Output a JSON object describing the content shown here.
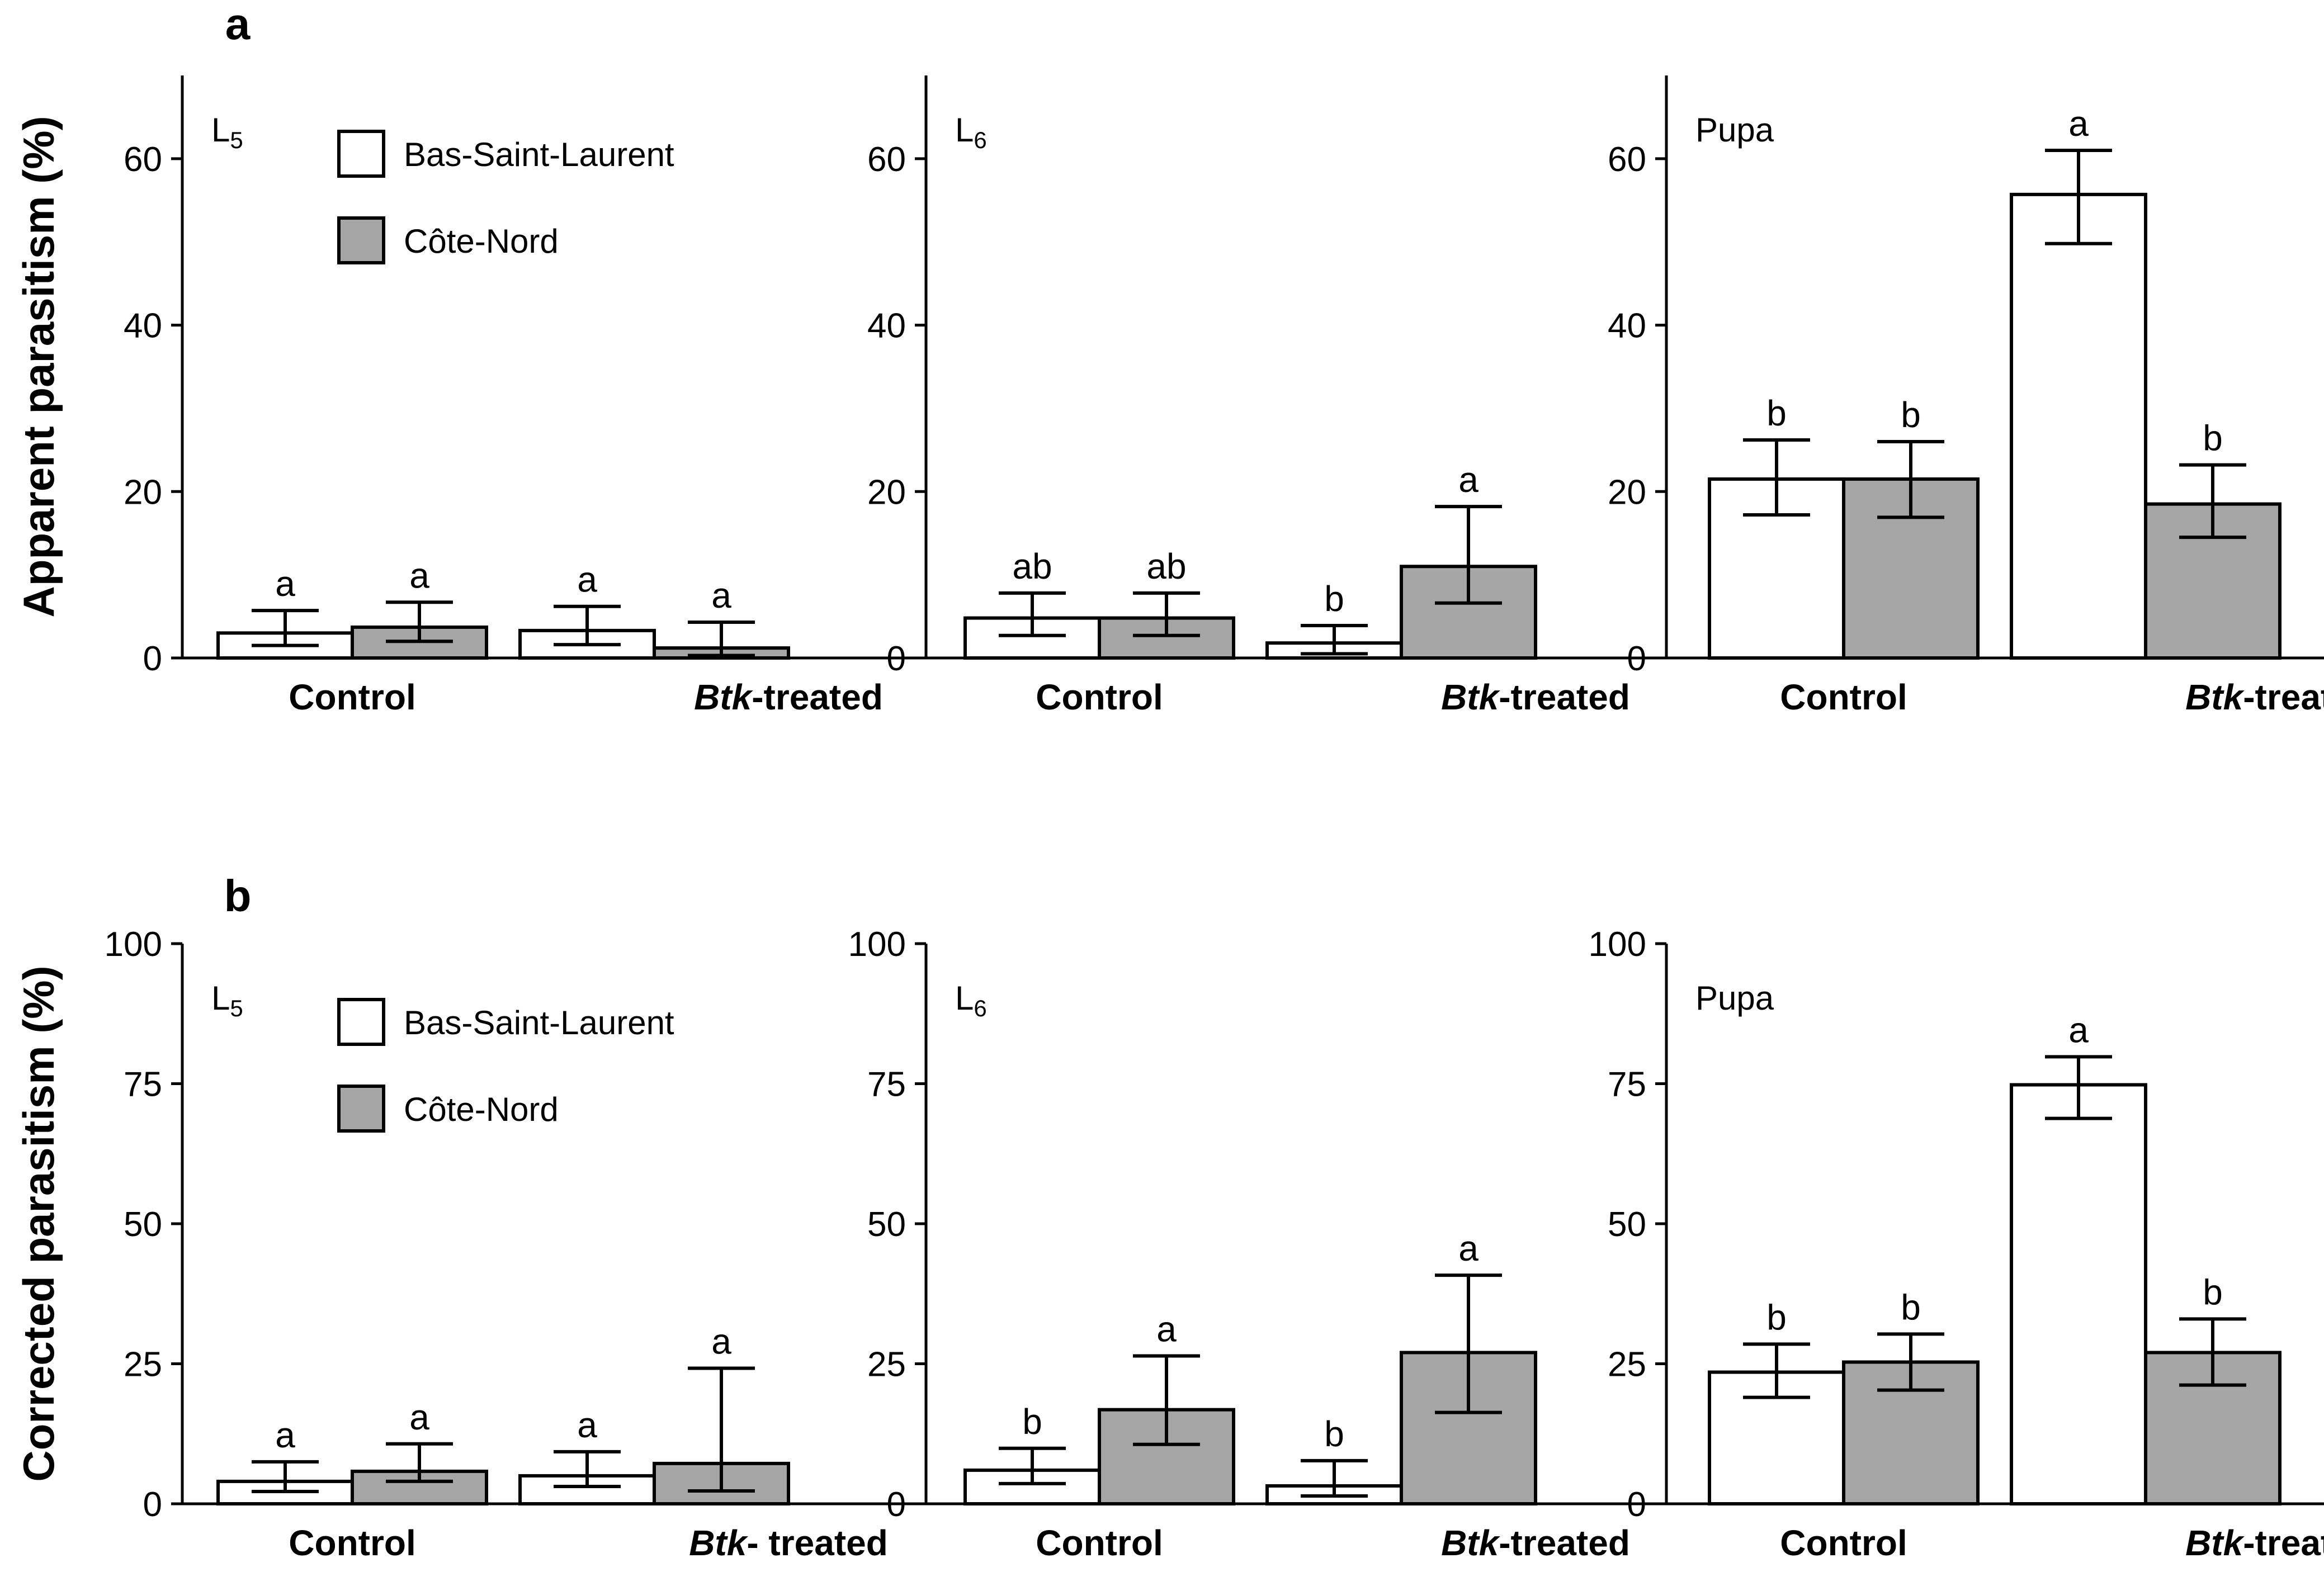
{
  "colors": {
    "bas_saint_laurent": "#ffffff",
    "cote_nord": "#a6a6a6",
    "axis": "#000000"
  },
  "legend": {
    "bas_saint_laurent": "Bas-Saint-Laurent",
    "cote_nord": "Côte-Nord"
  },
  "rows": [
    {
      "letter": "a",
      "ylabel": "Apparent parasitism (%)",
      "ylim": [
        0,
        70
      ],
      "ticks": [
        0,
        20,
        40,
        60
      ],
      "legend_shown": true,
      "panels": [
        {
          "stage_main": "L",
          "stage_sub": "5",
          "categories": [
            {
              "name": "Control"
            },
            {
              "italic": "Btk",
              "rest": "-treated"
            }
          ],
          "bars": [
            {
              "series": "Bas-Saint-Laurent",
              "value": 3.0,
              "err_low": 1.5,
              "err_high": 5.7,
              "sig": "a"
            },
            {
              "series": "Côte-Nord",
              "value": 3.7,
              "err_low": 2.0,
              "err_high": 6.7,
              "sig": "a"
            },
            {
              "series": "Bas-Saint-Laurent",
              "value": 3.3,
              "err_low": 1.6,
              "err_high": 6.2,
              "sig": "a"
            },
            {
              "series": "Côte-Nord",
              "value": 1.2,
              "err_low": 0.3,
              "err_high": 4.3,
              "sig": "a"
            }
          ]
        },
        {
          "stage_main": "L",
          "stage_sub": "6",
          "categories": [
            {
              "name": "Control"
            },
            {
              "italic": "Btk",
              "rest": "-treated"
            }
          ],
          "bars": [
            {
              "series": "Bas-Saint-Laurent",
              "value": 4.8,
              "err_low": 2.7,
              "err_high": 7.8,
              "sig": "ab"
            },
            {
              "series": "Côte-Nord",
              "value": 4.8,
              "err_low": 2.7,
              "err_high": 7.8,
              "sig": "ab"
            },
            {
              "series": "Bas-Saint-Laurent",
              "value": 1.8,
              "err_low": 0.5,
              "err_high": 3.9,
              "sig": "b"
            },
            {
              "series": "Côte-Nord",
              "value": 11.0,
              "err_low": 6.6,
              "err_high": 18.2,
              "sig": "a"
            }
          ]
        },
        {
          "stage_main": "Pupa",
          "stage_sub": "",
          "categories": [
            {
              "name": "Control"
            },
            {
              "italic": "Btk",
              "rest": "-treated"
            }
          ],
          "bars": [
            {
              "series": "Bas-Saint-Laurent",
              "value": 21.5,
              "err_low": 17.2,
              "err_high": 26.2,
              "sig": "b"
            },
            {
              "series": "Côte-Nord",
              "value": 21.5,
              "err_low": 16.9,
              "err_high": 26.0,
              "sig": "b"
            },
            {
              "series": "Bas-Saint-Laurent",
              "value": 55.7,
              "err_low": 49.8,
              "err_high": 61.0,
              "sig": "a"
            },
            {
              "series": "Côte-Nord",
              "value": 18.5,
              "err_low": 14.5,
              "err_high": 23.2,
              "sig": "b"
            }
          ]
        }
      ]
    },
    {
      "letter": "b",
      "ylabel": "Corrected parasitism (%)",
      "ylim": [
        0,
        100
      ],
      "ticks": [
        0,
        25,
        50,
        75,
        100
      ],
      "legend_shown": true,
      "panels": [
        {
          "stage_main": "L",
          "stage_sub": "5",
          "categories": [
            {
              "name": "Control"
            },
            {
              "italic": "Btk",
              "rest": "- treated"
            }
          ],
          "bars": [
            {
              "series": "Bas-Saint-Laurent",
              "value": 4.0,
              "err_low": 2.2,
              "err_high": 7.5,
              "sig": "a"
            },
            {
              "series": "Côte-Nord",
              "value": 5.8,
              "err_low": 4.0,
              "err_high": 10.7,
              "sig": "a"
            },
            {
              "series": "Bas-Saint-Laurent",
              "value": 5.0,
              "err_low": 3.1,
              "err_high": 9.3,
              "sig": "a"
            },
            {
              "series": "Côte-Nord",
              "value": 7.2,
              "err_low": 2.3,
              "err_high": 24.2,
              "sig": "a"
            }
          ]
        },
        {
          "stage_main": "L",
          "stage_sub": "6",
          "categories": [
            {
              "name": "Control"
            },
            {
              "italic": "Btk",
              "rest": "-treated"
            }
          ],
          "bars": [
            {
              "series": "Bas-Saint-Laurent",
              "value": 6.0,
              "err_low": 3.6,
              "err_high": 9.9,
              "sig": "b"
            },
            {
              "series": "Côte-Nord",
              "value": 16.8,
              "err_low": 10.6,
              "err_high": 26.4,
              "sig": "a"
            },
            {
              "series": "Bas-Saint-Laurent",
              "value": 3.2,
              "err_low": 1.4,
              "err_high": 7.7,
              "sig": "b"
            },
            {
              "series": "Côte-Nord",
              "value": 27.0,
              "err_low": 16.3,
              "err_high": 40.8,
              "sig": "a"
            }
          ]
        },
        {
          "stage_main": "Pupa",
          "stage_sub": "",
          "categories": [
            {
              "name": "Control"
            },
            {
              "italic": "Btk",
              "rest": "-treated"
            }
          ],
          "bars": [
            {
              "series": "Bas-Saint-Laurent",
              "value": 23.5,
              "err_low": 19.0,
              "err_high": 28.5,
              "sig": "b"
            },
            {
              "series": "Côte-Nord",
              "value": 25.3,
              "err_low": 20.3,
              "err_high": 30.3,
              "sig": "b"
            },
            {
              "series": "Bas-Saint-Laurent",
              "value": 74.8,
              "err_low": 68.8,
              "err_high": 79.8,
              "sig": "a"
            },
            {
              "series": "Côte-Nord",
              "value": 27.0,
              "err_low": 21.2,
              "err_high": 33.0,
              "sig": "b"
            }
          ]
        }
      ]
    }
  ],
  "chart_data": [
    {
      "type": "bar",
      "title": "a — L5",
      "ylabel": "Apparent parasitism (%)",
      "ylim": [
        0,
        70
      ],
      "categories": [
        "Control",
        "Btk-treated"
      ],
      "series": [
        {
          "name": "Bas-Saint-Laurent",
          "values": [
            3.0,
            3.3
          ]
        },
        {
          "name": "Côte-Nord",
          "values": [
            3.7,
            1.2
          ]
        }
      ]
    },
    {
      "type": "bar",
      "title": "a — L6",
      "ylabel": "Apparent parasitism (%)",
      "ylim": [
        0,
        70
      ],
      "categories": [
        "Control",
        "Btk-treated"
      ],
      "series": [
        {
          "name": "Bas-Saint-Laurent",
          "values": [
            4.8,
            1.8
          ]
        },
        {
          "name": "Côte-Nord",
          "values": [
            4.8,
            11.0
          ]
        }
      ]
    },
    {
      "type": "bar",
      "title": "a — Pupa",
      "ylabel": "Apparent parasitism (%)",
      "ylim": [
        0,
        70
      ],
      "categories": [
        "Control",
        "Btk-treated"
      ],
      "series": [
        {
          "name": "Bas-Saint-Laurent",
          "values": [
            21.5,
            55.7
          ]
        },
        {
          "name": "Côte-Nord",
          "values": [
            21.5,
            18.5
          ]
        }
      ]
    },
    {
      "type": "bar",
      "title": "b — L5",
      "ylabel": "Corrected parasitism (%)",
      "ylim": [
        0,
        100
      ],
      "categories": [
        "Control",
        "Btk- treated"
      ],
      "series": [
        {
          "name": "Bas-Saint-Laurent",
          "values": [
            4.0,
            5.0
          ]
        },
        {
          "name": "Côte-Nord",
          "values": [
            5.8,
            7.2
          ]
        }
      ]
    },
    {
      "type": "bar",
      "title": "b — L6",
      "ylabel": "Corrected parasitism (%)",
      "ylim": [
        0,
        100
      ],
      "categories": [
        "Control",
        "Btk-treated"
      ],
      "series": [
        {
          "name": "Bas-Saint-Laurent",
          "values": [
            6.0,
            3.2
          ]
        },
        {
          "name": "Côte-Nord",
          "values": [
            16.8,
            27.0
          ]
        }
      ]
    },
    {
      "type": "bar",
      "title": "b — Pupa",
      "ylabel": "Corrected parasitism (%)",
      "ylim": [
        0,
        100
      ],
      "categories": [
        "Control",
        "Btk-treated"
      ],
      "series": [
        {
          "name": "Bas-Saint-Laurent",
          "values": [
            23.5,
            74.8
          ]
        },
        {
          "name": "Côte-Nord",
          "values": [
            25.3,
            27.0
          ]
        }
      ]
    }
  ]
}
